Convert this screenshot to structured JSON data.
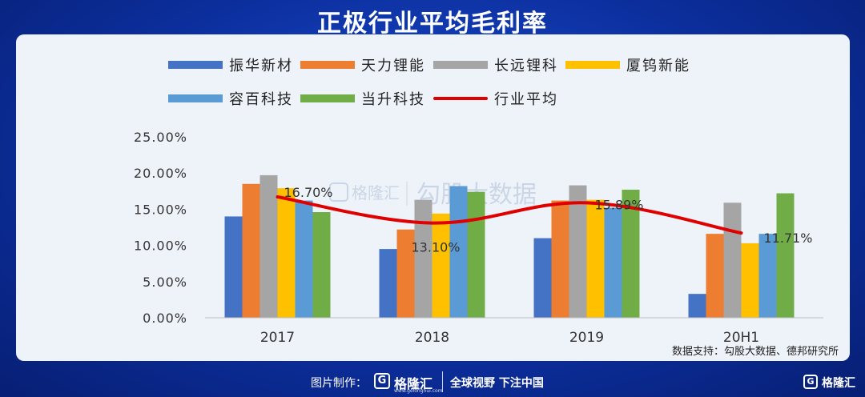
{
  "title": "正极行业平均毛利率",
  "source": "数据支持：勾股大数据、德邦研究所",
  "watermark": {
    "logo": "格隆汇",
    "text": "勾股大数据"
  },
  "footer": {
    "made_by": "图片制作：",
    "logo_mark": "G",
    "logo": "格隆汇",
    "logo_sub": "www.gelonghui.com",
    "slogan": "全球视野 下注中国",
    "corner_mark": "G",
    "corner_logo": "格隆汇"
  },
  "chart_data": {
    "type": "bar",
    "title": "正极行业平均毛利率",
    "categories": [
      "2017",
      "2018",
      "2019",
      "20H1"
    ],
    "ylim": [
      0,
      25
    ],
    "yticks": [
      "0.00%",
      "5.00%",
      "10.00%",
      "15.00%",
      "20.00%",
      "25.00%"
    ],
    "grid": false,
    "legend_position": "top",
    "series": [
      {
        "name": "振华新材",
        "color": "#4472c4",
        "values": [
          14.0,
          9.5,
          11.0,
          3.3
        ]
      },
      {
        "name": "天力锂能",
        "color": "#ed7d31",
        "values": [
          18.5,
          12.2,
          16.2,
          11.6
        ]
      },
      {
        "name": "长远锂科",
        "color": "#a5a5a5",
        "values": [
          19.7,
          16.3,
          18.3,
          15.9
        ]
      },
      {
        "name": "厦钨新能",
        "color": "#ffc000",
        "values": [
          17.9,
          14.4,
          16.3,
          10.3
        ]
      },
      {
        "name": "容百科技",
        "color": "#5b9bd5",
        "values": [
          16.2,
          18.2,
          15.2,
          11.6
        ]
      },
      {
        "name": "当升科技",
        "color": "#70ad47",
        "values": [
          14.6,
          17.4,
          17.7,
          17.2
        ]
      }
    ],
    "average": {
      "name": "行业平均",
      "color": "#e00000",
      "values": [
        16.7,
        13.1,
        15.89,
        11.71
      ],
      "labels": [
        "16.70%",
        "13.10%",
        "15.89%",
        "11.71%"
      ]
    }
  }
}
